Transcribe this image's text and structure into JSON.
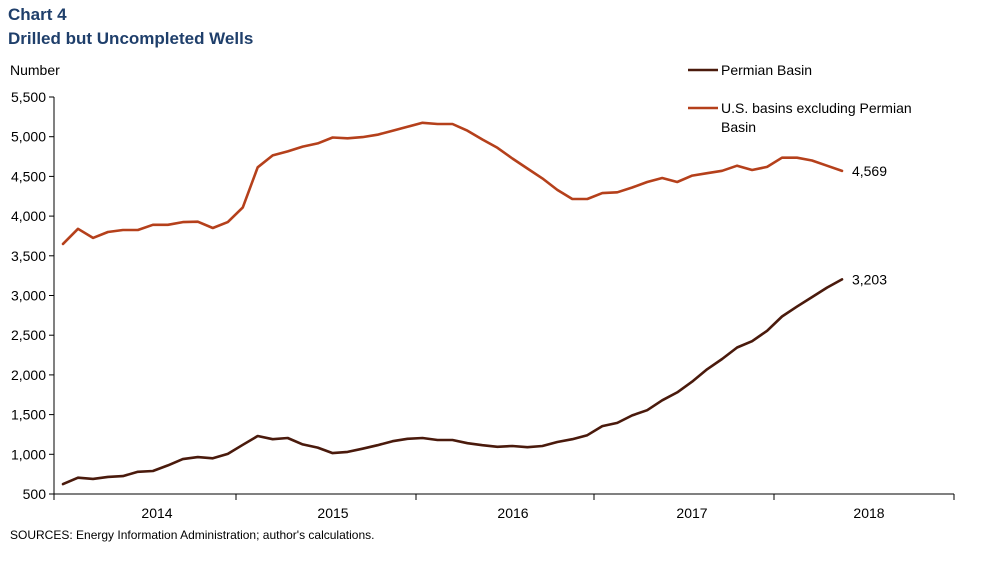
{
  "title_line1": "Chart 4",
  "title_line2": "Drilled but Uncompleted Wells",
  "source": "SOURCES: Energy Information  Administration; author's calculations.",
  "chart_data": {
    "type": "line",
    "title": "Drilled but Uncompleted Wells",
    "ylabel": "Number",
    "xlabel": "",
    "ylim": [
      500,
      5500
    ],
    "yticks": [
      500,
      1000,
      1500,
      2000,
      2500,
      3000,
      3500,
      4000,
      4500,
      5000,
      5500
    ],
    "ytick_labels": [
      "500",
      "1,000",
      "1,500",
      "2,000",
      "2,500",
      "3,000",
      "3,500",
      "4,000",
      "4,500",
      "5,000",
      "5,500"
    ],
    "x_start": "2013-12",
    "x_end": "2018-05",
    "year_labels": [
      "2014",
      "2015",
      "2016",
      "2017",
      "2018"
    ],
    "legend": {
      "position": "top-right"
    },
    "series": [
      {
        "name": "Permian Basin",
        "color": "#4a1a0c",
        "end_label": "3,203",
        "values": [
          625,
          705,
          690,
          715,
          725,
          780,
          790,
          860,
          940,
          965,
          950,
          1005,
          1120,
          1230,
          1190,
          1205,
          1125,
          1085,
          1015,
          1030,
          1070,
          1115,
          1165,
          1195,
          1205,
          1180,
          1180,
          1140,
          1115,
          1095,
          1105,
          1090,
          1105,
          1155,
          1190,
          1240,
          1355,
          1395,
          1490,
          1555,
          1680,
          1780,
          1915,
          2070,
          2200,
          2345,
          2425,
          2555,
          2735,
          2860,
          2980,
          3100,
          3203
        ]
      },
      {
        "name": "U.S. basins excluding Permian Basin",
        "color": "#b5401b",
        "end_label": "4,569",
        "values": [
          3650,
          3840,
          3725,
          3800,
          3825,
          3825,
          3890,
          3890,
          3925,
          3930,
          3850,
          3925,
          4110,
          4615,
          4765,
          4815,
          4875,
          4915,
          4990,
          4980,
          4995,
          5025,
          5075,
          5125,
          5175,
          5160,
          5160,
          5075,
          4965,
          4860,
          4725,
          4600,
          4475,
          4330,
          4215,
          4215,
          4290,
          4300,
          4360,
          4430,
          4480,
          4430,
          4510,
          4540,
          4570,
          4635,
          4580,
          4620,
          4735,
          4735,
          4700,
          4635,
          4569
        ]
      }
    ]
  }
}
